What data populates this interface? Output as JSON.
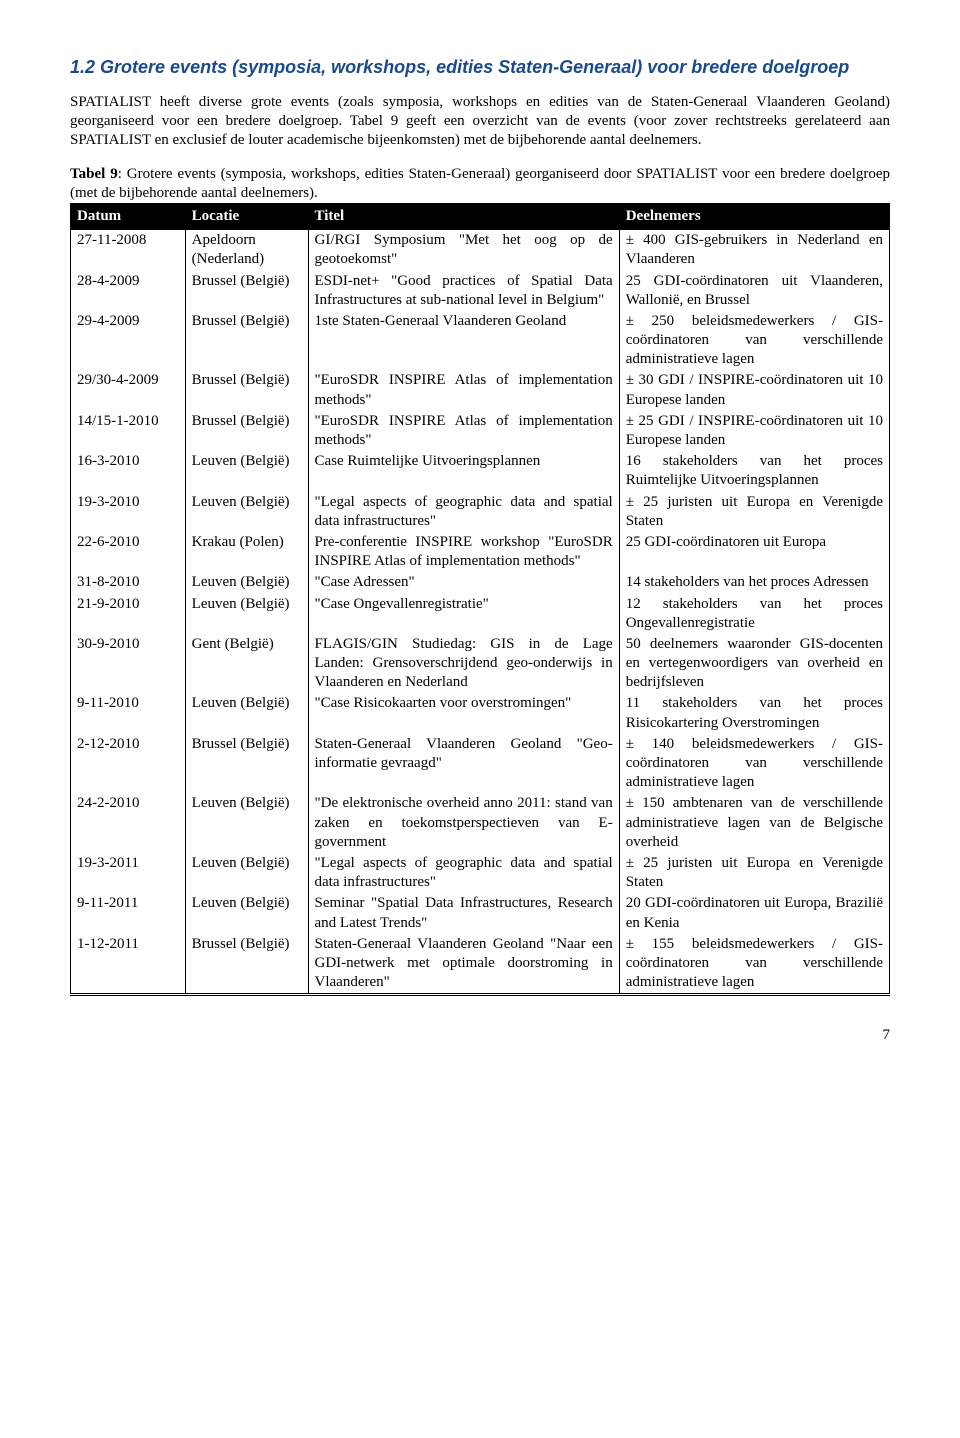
{
  "heading": "1.2 Grotere events (symposia, workshops, edities Staten-Generaal) voor bredere doelgroep",
  "para1": "SPATIALIST heeft diverse grote events (zoals symposia, workshops en edities van de Staten-Generaal Vlaanderen Geoland) georganiseerd voor een bredere doelgroep. Tabel 9 geeft een overzicht van de events (voor zover rechtstreeks gerelateerd aan SPATIALIST en exclusief de louter academische bijeenkomsten) met de bijbehorende aantal deelnemers.",
  "caption": "Tabel 9: Grotere events (symposia, workshops, edities Staten-Generaal) georganiseerd door SPATIALIST voor een bredere doelgroep (met de bijbehorende aantal deelnemers).",
  "table": {
    "columns": [
      "Datum",
      "Locatie",
      "Titel",
      "Deelnemers"
    ],
    "rows": [
      [
        "27-11-2008",
        "Apeldoorn (Nederland)",
        "GI/RGI Symposium \"Met het oog op de geotoekomst\"",
        "± 400 GIS-gebruikers in Nederland en Vlaanderen"
      ],
      [
        "28-4-2009",
        "Brussel (België)",
        "ESDI-net+ \"Good practices of Spatial Data Infrastructures at sub-national level in Belgium\"",
        "25 GDI-coördinatoren uit Vlaanderen, Wallonië, en Brussel"
      ],
      [
        "29-4-2009",
        "Brussel (België)",
        "1ste Staten-Generaal Vlaanderen Geoland",
        "± 250 beleidsmedewerkers / GIS-coördinatoren van verschillende administratieve lagen"
      ],
      [
        "29/30-4-2009",
        "Brussel (België)",
        "\"EuroSDR INSPIRE Atlas of implementation methods\"",
        "± 30 GDI / INSPIRE-coördinatoren uit 10 Europese landen"
      ],
      [
        "14/15-1-2010",
        "Brussel (België)",
        "\"EuroSDR INSPIRE Atlas of implementation methods\"",
        "± 25 GDI / INSPIRE-coördinatoren uit 10 Europese landen"
      ],
      [
        "16-3-2010",
        "Leuven (België)",
        "Case Ruimtelijke Uitvoeringsplannen",
        "16 stakeholders van het proces Ruimtelijke Uitvoeringsplannen"
      ],
      [
        "19-3-2010",
        "Leuven (België)",
        "\"Legal aspects of geographic data and spatial data infrastructures\"",
        "± 25 juristen uit Europa en Verenigde Staten"
      ],
      [
        "22-6-2010",
        "Krakau (Polen)",
        "Pre-conferentie INSPIRE workshop \"EuroSDR INSPIRE Atlas of implementation methods\"",
        "25 GDI-coördinatoren uit Europa"
      ],
      [
        "31-8-2010",
        "Leuven (België)",
        "\"Case Adressen\"",
        "14 stakeholders van het proces Adressen"
      ],
      [
        "21-9-2010",
        "Leuven (België)",
        "\"Case Ongevallenregistratie\"",
        "12 stakeholders van het proces Ongevallenregistratie"
      ],
      [
        "30-9-2010",
        "Gent (België)",
        "FLAGIS/GIN Studiedag: GIS in de Lage Landen: Grensoverschrijdend geo-onderwijs in Vlaanderen en Nederland",
        "50 deelnemers waaronder GIS-docenten en vertegenwoordigers van overheid en bedrijfsleven"
      ],
      [
        "9-11-2010",
        "Leuven (België)",
        "\"Case Risicokaarten voor overstromingen\"",
        "11 stakeholders van het proces Risicokartering Overstromingen"
      ],
      [
        "2-12-2010",
        "Brussel (België)",
        "Staten-Generaal Vlaanderen Geoland \"Geo-informatie gevraagd\"",
        "± 140 beleidsmedewerkers / GIS-coördinatoren van verschillende administratieve lagen"
      ],
      [
        "24-2-2010",
        "Leuven (België)",
        "\"De elektronische overheid anno 2011: stand van zaken en toekomstperspectieven van E-government",
        "± 150 ambtenaren van de verschillende administratieve lagen van de Belgische overheid"
      ],
      [
        "19-3-2011",
        "Leuven (België)",
        "\"Legal aspects of geographic data and spatial data infrastructures\"",
        "± 25 juristen uit Europa en Verenigde Staten"
      ],
      [
        "9-11-2011",
        "Leuven (België)",
        "Seminar \"Spatial Data Infrastructures, Research and Latest Trends\"",
        "20 GDI-coördinatoren uit Europa, Brazilië en Kenia"
      ],
      [
        "1-12-2011",
        "Brussel (België)",
        "Staten-Generaal Vlaanderen Geoland \"Naar een GDI-netwerk met optimale doorstroming in Vlaanderen\"",
        "± 155 beleidsmedewerkers / GIS-coördinatoren van verschillende administratieve lagen"
      ]
    ]
  },
  "pagenum": "7"
}
